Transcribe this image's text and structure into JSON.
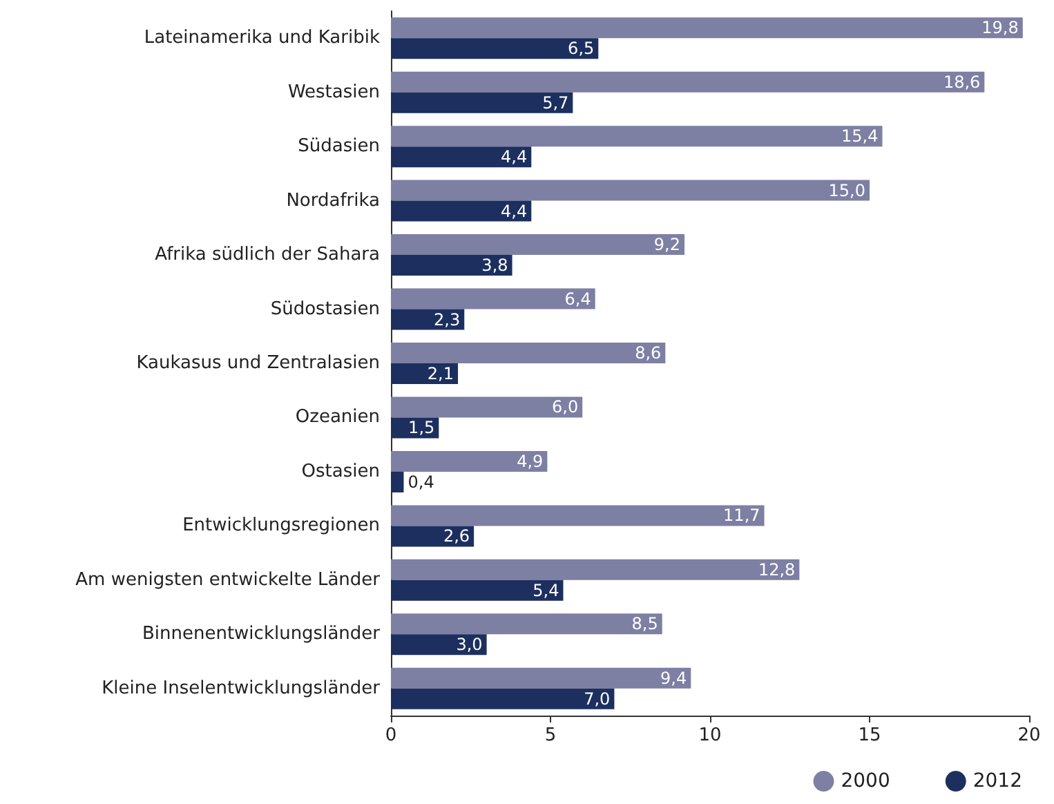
{
  "chart_data": {
    "type": "bar",
    "orientation": "horizontal",
    "categories": [
      "Lateinamerika und Karibik",
      "Westasien",
      "Südasien",
      "Nordafrika",
      "Afrika südlich der Sahara",
      "Südostasien",
      "Kaukasus und Zentralasien",
      "Ozeanien",
      "Ostasien",
      "Entwicklungsregionen",
      "Am wenigsten entwickelte Länder",
      "Binnenentwicklungsländer",
      "Kleine Inselentwicklungsländer"
    ],
    "series": [
      {
        "name": "2000",
        "color": "#7d7fa3",
        "values": [
          19.8,
          18.6,
          15.4,
          15.0,
          9.2,
          6.4,
          8.6,
          6.0,
          4.9,
          11.7,
          12.8,
          8.5,
          9.4
        ],
        "value_labels": [
          "19,8",
          "18,6",
          "15,4",
          "15,0",
          "9,2",
          "6,4",
          "8,6",
          "6,0",
          "4,9",
          "11,7",
          "12,8",
          "8,5",
          "9,4"
        ]
      },
      {
        "name": "2012",
        "color": "#1c2f5f",
        "values": [
          6.5,
          5.7,
          4.4,
          4.4,
          3.8,
          2.3,
          2.1,
          1.5,
          0.4,
          2.6,
          5.4,
          3.0,
          7.0
        ],
        "value_labels": [
          "6,5",
          "5,7",
          "4,4",
          "4,4",
          "3,8",
          "2,3",
          "2,1",
          "1,5",
          "0,4",
          "2,6",
          "5,4",
          "3,0",
          "7,0"
        ]
      }
    ],
    "xlim": [
      0,
      20
    ],
    "xticks": [
      0,
      5,
      10,
      15,
      20
    ],
    "grid": false,
    "legend": "bottom right"
  }
}
